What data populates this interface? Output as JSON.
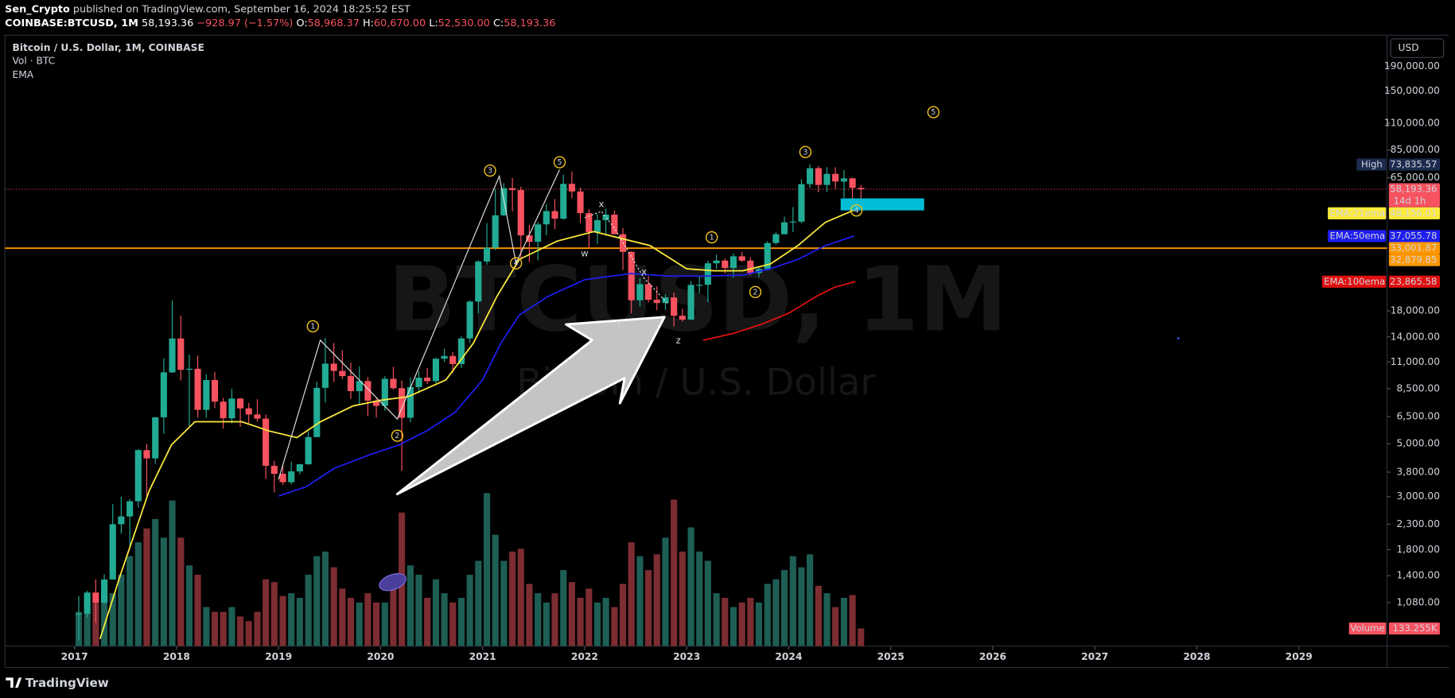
{
  "header": {
    "publisher": "Sen_Crypto",
    "published": "published on TradingView.com, September 16, 2024 18:25:52 EST",
    "symbol": "COINBASE:BTCUSD, 1M",
    "last": "58,193.36",
    "change": "−928.97 (−1.57%)",
    "ohlc": [
      {
        "key": "O:",
        "value": "58,968.37"
      },
      {
        "key": "H:",
        "value": "60,670.00"
      },
      {
        "key": "L:",
        "value": "52,530.00"
      },
      {
        "key": "C:",
        "value": "58,193.36"
      }
    ]
  },
  "legend": [
    "Bitcoin / U.S. Dollar, 1M, COINBASE",
    "Vol · BTC",
    "EMA"
  ],
  "currency": "USD",
  "watermark": {
    "symbol": "BTCUSD, 1M",
    "description": "Bitcoin / U.S. Dollar"
  },
  "footer": {
    "brand": "TradingView"
  },
  "chart_data": {
    "type": "candlestick",
    "log_scale": true,
    "grid": false,
    "up_color": "#22ab94",
    "down_color": "#f7525f",
    "xlim": [
      2016.318,
      2029.864
    ],
    "xticks": [
      2017,
      2018,
      2019,
      2020,
      2021,
      2022,
      2023,
      2024,
      2025,
      2026,
      2027,
      2028,
      2029
    ],
    "ylim": [
      710,
      257000
    ],
    "yticks": [
      {
        "value": 190000,
        "label": "190,000.00"
      },
      {
        "value": 150000,
        "label": "150,000.00"
      },
      {
        "value": 110000,
        "label": "110,000.00"
      },
      {
        "value": 85000,
        "label": "85,000.00"
      },
      {
        "value": 65000,
        "label": "65,000.00"
      },
      {
        "value": 18000,
        "label": "18,000.00"
      },
      {
        "value": 14000,
        "label": "14,000.00"
      },
      {
        "value": 11000,
        "label": "11,000.00"
      },
      {
        "value": 8500,
        "label": "8,500.00"
      },
      {
        "value": 6500,
        "label": "6,500.00"
      },
      {
        "value": 5000,
        "label": "5,000.00"
      },
      {
        "value": 3800,
        "label": "3,800.00"
      },
      {
        "value": 3000,
        "label": "3,000.00"
      },
      {
        "value": 2300,
        "label": "2,300.00"
      },
      {
        "value": 1800,
        "label": "1,800.00"
      },
      {
        "value": 1400,
        "label": "1,400.00"
      },
      {
        "value": 1080,
        "label": "1,080.00"
      }
    ],
    "x": [
      2017.042,
      2017.125,
      2017.208,
      2017.292,
      2017.375,
      2017.458,
      2017.542,
      2017.625,
      2017.708,
      2017.792,
      2017.875,
      2017.958,
      2018.042,
      2018.125,
      2018.208,
      2018.292,
      2018.375,
      2018.458,
      2018.542,
      2018.625,
      2018.708,
      2018.792,
      2018.875,
      2018.958,
      2019.042,
      2019.125,
      2019.208,
      2019.292,
      2019.375,
      2019.458,
      2019.542,
      2019.625,
      2019.708,
      2019.792,
      2019.875,
      2019.958,
      2020.042,
      2020.125,
      2020.208,
      2020.292,
      2020.375,
      2020.458,
      2020.542,
      2020.625,
      2020.708,
      2020.792,
      2020.875,
      2020.958,
      2021.042,
      2021.125,
      2021.208,
      2021.292,
      2021.375,
      2021.458,
      2021.542,
      2021.625,
      2021.708,
      2021.792,
      2021.875,
      2021.958,
      2022.042,
      2022.125,
      2022.208,
      2022.292,
      2022.375,
      2022.458,
      2022.542,
      2022.625,
      2022.708,
      2022.792,
      2022.875,
      2022.958,
      2023.042,
      2023.125,
      2023.208,
      2023.292,
      2023.375,
      2023.458,
      2023.542,
      2023.625,
      2023.708,
      2023.792,
      2023.875,
      2023.958,
      2024.042,
      2024.125,
      2024.208,
      2024.292,
      2024.375,
      2024.458,
      2024.542,
      2024.625,
      2024.708
    ],
    "open": [
      963,
      970,
      1190,
      1080,
      1350,
      2300,
      2480,
      2870,
      4700,
      4340,
      6450,
      9950,
      13800,
      10200,
      10300,
      6930,
      9240,
      7500,
      6390,
      7730,
      7030,
      6630,
      6370,
      4040,
      3740,
      3450,
      3830,
      4100,
      5330,
      8570,
      10820,
      10090,
      9600,
      8300,
      9150,
      7570,
      7200,
      9350,
      8540,
      6420,
      8630,
      9450,
      9140,
      11350,
      11650,
      10780,
      13800,
      19700,
      28990,
      33100,
      45240,
      58800,
      57720,
      37300,
      35040,
      41460,
      47130,
      43820,
      61300,
      56950,
      46210,
      38480,
      43180,
      45540,
      37710,
      31800,
      19940,
      23300,
      20050,
      19420,
      20490,
      17170,
      16540,
      23130,
      23150,
      28480,
      29250,
      27220,
      30480,
      29230,
      25940,
      26970,
      34650,
      37720,
      42280,
      42580,
      61130,
      71290,
      60650,
      67500,
      62680,
      64620,
      58968.37
    ],
    "high": [
      1150,
      1210,
      1350,
      1420,
      2790,
      3000,
      2930,
      4750,
      5000,
      6470,
      11400,
      19891,
      17200,
      11800,
      11700,
      9760,
      10000,
      7780,
      8500,
      7760,
      7410,
      7680,
      6620,
      4240,
      4070,
      4200,
      4120,
      5640,
      9090,
      13880,
      13200,
      12330,
      10950,
      10540,
      9510,
      7750,
      9580,
      10500,
      9190,
      9460,
      10070,
      10380,
      11450,
      12480,
      12080,
      14100,
      19900,
      29300,
      41980,
      58350,
      61790,
      64900,
      59600,
      41330,
      42450,
      50500,
      52950,
      67000,
      69000,
      59100,
      47990,
      45860,
      48240,
      47450,
      40030,
      31990,
      24670,
      25210,
      22800,
      21100,
      21480,
      18390,
      23960,
      25270,
      29200,
      31000,
      29840,
      31390,
      31810,
      30200,
      27480,
      35200,
      38430,
      44730,
      48970,
      64000,
      73835.57,
      72800,
      71980,
      71990,
      70000,
      65100,
      60670
    ],
    "low": [
      750,
      940,
      890,
      1060,
      1350,
      2100,
      1840,
      2700,
      2980,
      4120,
      5500,
      9900,
      9200,
      5920,
      6430,
      6430,
      7050,
      5780,
      6080,
      5880,
      6100,
      6180,
      3560,
      3130,
      3360,
      3380,
      3720,
      4080,
      5330,
      7450,
      9070,
      9320,
      7710,
      7300,
      6520,
      6430,
      6860,
      8420,
      3850,
      6150,
      8130,
      8890,
      8960,
      10990,
      9880,
      10380,
      13200,
      17580,
      28130,
      32330,
      45000,
      47000,
      30000,
      28800,
      29280,
      37330,
      39600,
      43320,
      53250,
      42000,
      32930,
      34320,
      37160,
      37700,
      26700,
      17590,
      18780,
      19520,
      18130,
      18190,
      15480,
      16260,
      16500,
      21360,
      19570,
      26940,
      25820,
      24790,
      28860,
      25370,
      24900,
      26560,
      34100,
      37650,
      38500,
      41900,
      59000,
      56500,
      56550,
      58400,
      53500,
      49000,
      52530
    ],
    "close": [
      970,
      1190,
      1080,
      1350,
      2300,
      2480,
      2870,
      4700,
      4340,
      6450,
      9950,
      13800,
      10200,
      10300,
      6930,
      9240,
      7500,
      6390,
      7730,
      7030,
      6630,
      6370,
      4040,
      3740,
      3450,
      3830,
      4100,
      5330,
      8570,
      10820,
      10090,
      9600,
      8300,
      9150,
      7570,
      7200,
      9350,
      8540,
      6420,
      8630,
      9450,
      9140,
      11350,
      11650,
      10780,
      13800,
      19700,
      28990,
      33100,
      45240,
      58800,
      57720,
      37300,
      35040,
      41460,
      47130,
      43820,
      61300,
      56950,
      46210,
      38480,
      43180,
      45540,
      37710,
      31800,
      19940,
      23300,
      20050,
      19420,
      20490,
      17170,
      16540,
      23130,
      23150,
      28480,
      29250,
      27220,
      30480,
      29230,
      25940,
      26970,
      34650,
      37720,
      42280,
      42580,
      61130,
      71290,
      60650,
      67500,
      62680,
      64620,
      58968.37,
      58193.36
    ],
    "y2lim": [
      0,
      4620000
    ],
    "volume": {
      "name": "Volume",
      "up_color": "#1d5e55",
      "down_color": "#7c2d32",
      "badge_color": "#f7525f",
      "values": [
        259000,
        259000,
        330000,
        400000,
        400000,
        540000,
        680000,
        785000,
        890000,
        961000,
        820000,
        1101000,
        820000,
        610000,
        540000,
        295000,
        259000,
        259000,
        295000,
        224000,
        189000,
        259000,
        505000,
        484000,
        379000,
        400000,
        365000,
        540000,
        680000,
        715000,
        596000,
        435000,
        365000,
        330000,
        400000,
        330000,
        330000,
        470000,
        1010000,
        610000,
        540000,
        365000,
        505000,
        400000,
        330000,
        365000,
        540000,
        645000,
        1157000,
        842000,
        645000,
        715000,
        736000,
        470000,
        400000,
        330000,
        400000,
        575000,
        484000,
        365000,
        435000,
        330000,
        365000,
        295000,
        470000,
        785000,
        680000,
        575000,
        694000,
        820000,
        1108000,
        715000,
        898000,
        715000,
        645000,
        400000,
        365000,
        295000,
        330000,
        365000,
        330000,
        470000,
        505000,
        575000,
        680000,
        596000,
        694000,
        456000,
        400000,
        295000,
        365000,
        386000,
        133255
      ],
      "value_labels": [
        null,
        null,
        null,
        null,
        null,
        null,
        null,
        null,
        null,
        null,
        null,
        null,
        null,
        null,
        null,
        null,
        null,
        null,
        null,
        null,
        null,
        null,
        null,
        null,
        null,
        null,
        null,
        null,
        null,
        null,
        null,
        null,
        null,
        null,
        null,
        null,
        null,
        null,
        null,
        null,
        null,
        null,
        null,
        null,
        null,
        null,
        null,
        null,
        null,
        null,
        null,
        null,
        null,
        null,
        null,
        null,
        null,
        null,
        null,
        null,
        null,
        null,
        null,
        null,
        null,
        null,
        null,
        null,
        null,
        null,
        null,
        null,
        null,
        null,
        null,
        null,
        null,
        null,
        null,
        null,
        null,
        null,
        null,
        null,
        null,
        null,
        null,
        null,
        null,
        null,
        null,
        null,
        "133.255K"
      ]
    },
    "series": [
      {
        "name": "EMA:21ema",
        "color": "#ffeb3b",
        "text_color": "#000000",
        "x": [
          2017.25,
          2017.45,
          2017.73,
          2017.95,
          2018.18,
          2018.64,
          2018.91,
          2019.18,
          2019.41,
          2019.73,
          2020.0,
          2020.27,
          2020.64,
          2020.91,
          2021.14,
          2021.36,
          2021.73,
          2022.09,
          2022.27,
          2022.64,
          2023.0,
          2023.27,
          2023.55,
          2023.82,
          2024.09,
          2024.36,
          2024.67
        ],
        "values": [
          760,
          1410,
          3160,
          4940,
          6180,
          6180,
          5650,
          5300,
          6180,
          7200,
          7600,
          7870,
          9250,
          13200,
          20700,
          29600,
          35300,
          38700,
          37000,
          33800,
          27000,
          26500,
          26500,
          28300,
          33800,
          42300,
          48156.01
        ],
        "value_labels": [
          null,
          null,
          null,
          null,
          null,
          null,
          null,
          null,
          null,
          null,
          null,
          null,
          null,
          null,
          null,
          null,
          null,
          null,
          null,
          null,
          null,
          null,
          null,
          null,
          null,
          null,
          "48,156.01"
        ]
      },
      {
        "name": "EMA:50ema",
        "color": "#1e1ef0",
        "text_color": "#ffffff",
        "x": [
          2019.0,
          2019.27,
          2019.55,
          2019.91,
          2020.18,
          2020.45,
          2020.73,
          2021.0,
          2021.18,
          2021.36,
          2021.64,
          2022.0,
          2022.45,
          2022.82,
          2023.18,
          2023.55,
          2023.82,
          2024.09,
          2024.36,
          2024.64
        ],
        "values": [
          3020,
          3300,
          3950,
          4520,
          4940,
          5650,
          6770,
          9250,
          13200,
          17300,
          20700,
          24300,
          25800,
          25200,
          25200,
          25400,
          27000,
          29600,
          33800,
          37055.78
        ],
        "value_labels": [
          null,
          null,
          null,
          null,
          null,
          null,
          null,
          null,
          null,
          null,
          null,
          null,
          null,
          null,
          null,
          null,
          null,
          null,
          null,
          "37,055.78"
        ]
      },
      {
        "name": "EMA:100ema",
        "color": "#e01010",
        "text_color": "#ffffff",
        "x": [
          2023.16,
          2023.45,
          2023.73,
          2024.0,
          2024.27,
          2024.45,
          2024.65
        ],
        "values": [
          13570,
          14460,
          15800,
          17600,
          20700,
          22600,
          23865.58
        ],
        "value_labels": [
          null,
          null,
          null,
          null,
          null,
          null,
          "23,865.58"
        ]
      }
    ],
    "price_labels": [
      {
        "name": "High",
        "value": 73835.57,
        "label": "73,835.57",
        "color": "#1c2b4f",
        "text_color": "#ffffff",
        "line": "none"
      },
      {
        "value": 58193.36,
        "label": "58,193.36",
        "sub": "14d 1h",
        "color": "#f7525f",
        "text_color": "#ffffff",
        "line": "dotted"
      },
      {
        "value": 33001.87,
        "label": "33,001.87",
        "color": "#ff9800",
        "text_color": "#000000",
        "line": "solid"
      },
      {
        "value": 32879.85,
        "label": "32,879.85",
        "color": "#ff9800",
        "text_color": "#000000",
        "line": "solid"
      }
    ],
    "annotations": [
      {
        "text": "1",
        "shape": "circle",
        "color": "#f5c518"
      },
      {
        "text": "2",
        "shape": "circle",
        "color": "#f5c518"
      },
      {
        "text": "3",
        "shape": "circle",
        "color": "#f5c518"
      },
      {
        "text": "4",
        "shape": "circle",
        "color": "#f5c518"
      },
      {
        "text": "5",
        "shape": "circle",
        "color": "#f5c518"
      },
      {
        "text": "x",
        "shape": "none",
        "color": "#ff9800"
      },
      {
        "text": "w",
        "shape": "none",
        "color": "#ff9800"
      },
      {
        "text": "x",
        "shape": "none",
        "color": "#ff9800"
      },
      {
        "text": "Y",
        "shape": "none",
        "color": "#6e6530"
      },
      {
        "text": "z",
        "shape": "none",
        "color": "#ff9800"
      },
      {
        "text": "1",
        "shape": "circle",
        "color": "#f5c518"
      },
      {
        "text": "2",
        "shape": "circle",
        "color": "#f5c518"
      },
      {
        "text": "3",
        "shape": "circle",
        "color": "#f5c518"
      },
      {
        "text": "4",
        "shape": "circle",
        "color": "#f5c518"
      },
      {
        "text": "5",
        "shape": "circle",
        "color": "#f5c518"
      }
    ]
  }
}
